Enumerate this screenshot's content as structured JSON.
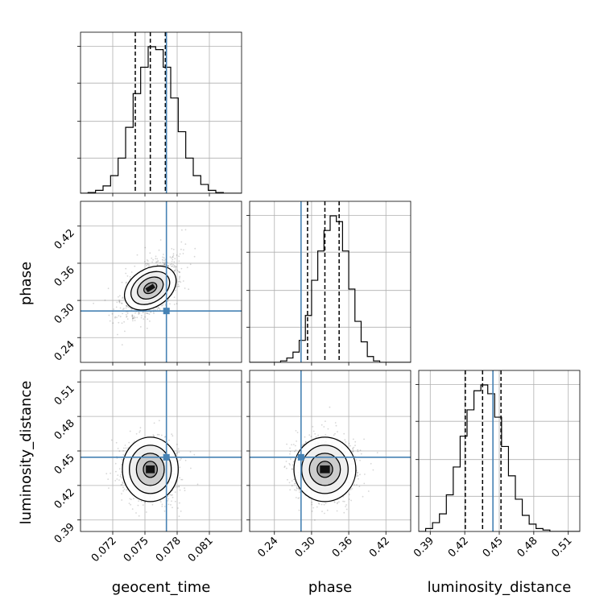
{
  "chart_data": {
    "type": "corner",
    "parameters": [
      "geocent_time",
      "phase",
      "luminosity_distance"
    ],
    "truths": {
      "geocent_time": 0.077,
      "phase": 0.283,
      "luminosity_distance": 0.4445
    },
    "truth_color": "#4682b4",
    "axes": {
      "geocent_time": {
        "range": [
          0.069,
          0.084
        ],
        "ticks": [
          0.072,
          0.075,
          0.078,
          0.081
        ],
        "tick_labels": [
          "0.072",
          "0.075",
          "0.078",
          "0.081"
        ]
      },
      "phase": {
        "range": [
          0.2,
          0.46
        ],
        "ticks": [
          0.24,
          0.3,
          0.36,
          0.42
        ],
        "tick_labels": [
          "0.24",
          "0.30",
          "0.36",
          "0.42"
        ]
      },
      "luminosity_distance": {
        "range": [
          0.38,
          0.52
        ],
        "ticks": [
          0.39,
          0.42,
          0.45,
          0.48,
          0.51
        ],
        "tick_labels": [
          "0.39",
          "0.42",
          "0.45",
          "0.48",
          "0.51"
        ]
      }
    },
    "quantiles": {
      "geocent_time": [
        0.0741,
        0.0755,
        0.0769
      ],
      "phase": [
        0.2935,
        0.3215,
        0.3445
      ],
      "luminosity_distance": [
        0.4205,
        0.4355,
        0.4515
      ]
    },
    "histograms": {
      "geocent_time": {
        "bins": [
          0.069,
          0.0697,
          0.0704,
          0.0711,
          0.0718,
          0.0725,
          0.0732,
          0.0739,
          0.0746,
          0.0753,
          0.076,
          0.0767,
          0.0774,
          0.0781,
          0.0788,
          0.0795,
          0.0802,
          0.0809,
          0.0816,
          0.0823,
          0.083,
          0.084
        ],
        "counts": [
          0.0,
          0.005,
          0.02,
          0.05,
          0.12,
          0.24,
          0.45,
          0.68,
          0.86,
          1.0,
          0.98,
          0.86,
          0.65,
          0.42,
          0.24,
          0.12,
          0.06,
          0.02,
          0.005,
          0.0,
          0.0
        ]
      },
      "phase": {
        "bins": [
          0.2,
          0.21,
          0.22,
          0.23,
          0.24,
          0.25,
          0.26,
          0.27,
          0.28,
          0.29,
          0.3,
          0.31,
          0.32,
          0.33,
          0.34,
          0.35,
          0.36,
          0.37,
          0.38,
          0.39,
          0.4,
          0.41,
          0.42,
          0.43,
          0.44,
          0.45,
          0.46
        ],
        "counts": [
          0.0,
          0.0,
          0.0,
          0.0,
          0.0,
          0.01,
          0.03,
          0.07,
          0.15,
          0.32,
          0.56,
          0.76,
          0.9,
          1.0,
          0.96,
          0.76,
          0.5,
          0.28,
          0.14,
          0.04,
          0.01,
          0.0,
          0.0,
          0.0,
          0.0,
          0.0
        ]
      },
      "luminosity_distance": {
        "bins": [
          0.38,
          0.386,
          0.392,
          0.398,
          0.404,
          0.41,
          0.416,
          0.422,
          0.428,
          0.434,
          0.44,
          0.446,
          0.452,
          0.458,
          0.464,
          0.47,
          0.476,
          0.482,
          0.488,
          0.494,
          0.5,
          0.52
        ],
        "counts": [
          0.0,
          0.02,
          0.06,
          0.12,
          0.25,
          0.44,
          0.65,
          0.83,
          0.96,
          1.0,
          0.94,
          0.78,
          0.58,
          0.38,
          0.22,
          0.11,
          0.05,
          0.02,
          0.01,
          0.0,
          0.0
        ]
      }
    },
    "contours_2d": {
      "phase_vs_geocent_time": {
        "mean": [
          0.0755,
          0.32
        ],
        "sigma": [
          0.0013,
          0.025
        ],
        "rho": 0.55
      },
      "luminosity_distance_vs_geocent_time": {
        "mean": [
          0.0755,
          0.434
        ],
        "sigma": [
          0.0013,
          0.014
        ],
        "rho": 0.0
      },
      "luminosity_distance_vs_phase": {
        "mean": [
          0.3215,
          0.434
        ],
        "sigma": [
          0.025,
          0.014
        ],
        "rho": 0.0
      }
    },
    "contour_levels_sigma": [
      0.5,
      1.0,
      1.5,
      2.0
    ],
    "grid": true
  }
}
